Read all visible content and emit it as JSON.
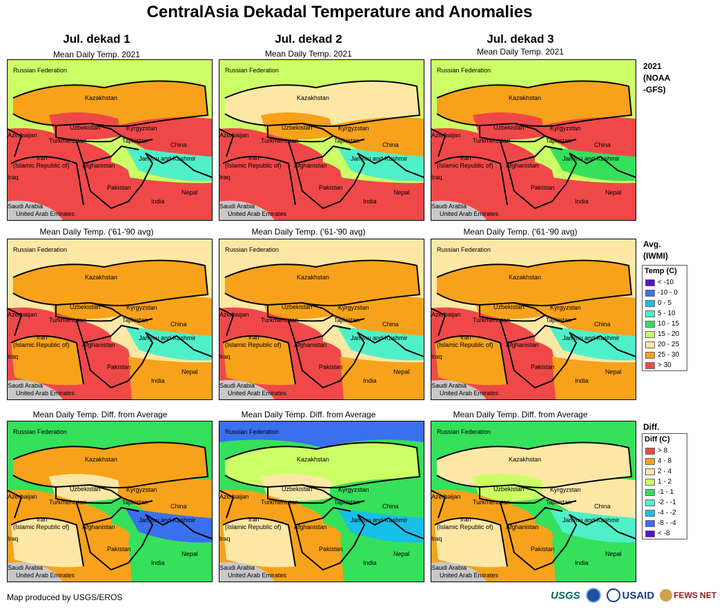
{
  "title": "CentralAsia Dekadal Temperature and Anomalies",
  "columns": [
    "Jul. dekad 1",
    "Jul. dekad 2",
    "Jul. dekad 3"
  ],
  "row_subtitles": [
    "Mean Daily Temp. 2021",
    "Mean Daily Temp. ('61-'90 avg)",
    "Mean Daily Temp. Diff. from Average"
  ],
  "row_labels": {
    "r1": [
      "2021",
      "(NOAA",
      "-GFS)"
    ],
    "r2": [
      "Avg.",
      "(IWMI)"
    ],
    "r3": [
      "Diff."
    ]
  },
  "map_labels": {
    "russia": "Russian Federation",
    "kazakhstan": "Kazakhstan",
    "uzbekistan": "Uzbekistan",
    "kyrgyzstan": "Kyrgyzstan",
    "azerbaijan": "Azerbaijan",
    "turkmenistan": "Turkmenistan",
    "tajikistan": "Tajikistan",
    "china": "China",
    "iran": "Iran",
    "iran2": "(Islamic Republic of)",
    "afghanistan": "Afghanistan",
    "jammu": "Jammu and Kashmir",
    "iraq": "Iraq",
    "pakistan": "Pakistan",
    "nepal": "Nepal",
    "india": "India",
    "saudi": "Saudi Arabia",
    "uae": "United Arab Emirates"
  },
  "temp_legend": {
    "title": "Temp (C)",
    "items": [
      {
        "label": "< -10",
        "color": "#5a0fd0"
      },
      {
        "label": "-10 - 0",
        "color": "#3a6ff0"
      },
      {
        "label": "0 - 5",
        "color": "#16c0e6"
      },
      {
        "label": "5 - 10",
        "color": "#4ff0c8"
      },
      {
        "label": "10 - 15",
        "color": "#35e05a"
      },
      {
        "label": "15 - 20",
        "color": "#ccff66"
      },
      {
        "label": "20 - 25",
        "color": "#fde7a4"
      },
      {
        "label": "25 - 30",
        "color": "#f7a21a"
      },
      {
        "label": "> 30",
        "color": "#f04848"
      }
    ]
  },
  "diff_legend": {
    "title": "Diff (C)",
    "items": [
      {
        "label": "> 8",
        "color": "#f04848"
      },
      {
        "label": "4 - 8",
        "color": "#f7a21a"
      },
      {
        "label": "2 - 4",
        "color": "#fde7a4"
      },
      {
        "label": "1 - 2",
        "color": "#ccff66"
      },
      {
        "label": "-1 - 1",
        "color": "#35e05a"
      },
      {
        "label": "-2 - -1",
        "color": "#4ff0c8"
      },
      {
        "label": "-4 - -2",
        "color": "#16c0e6"
      },
      {
        "label": "-8 - -4",
        "color": "#3a6ff0"
      },
      {
        "label": "< -8",
        "color": "#5a0fd0"
      }
    ]
  },
  "footer": "Map produced by USGS/EROS",
  "logos": {
    "usgs": "USGS",
    "usaid": "USAID",
    "fews": "FEWS NET"
  }
}
